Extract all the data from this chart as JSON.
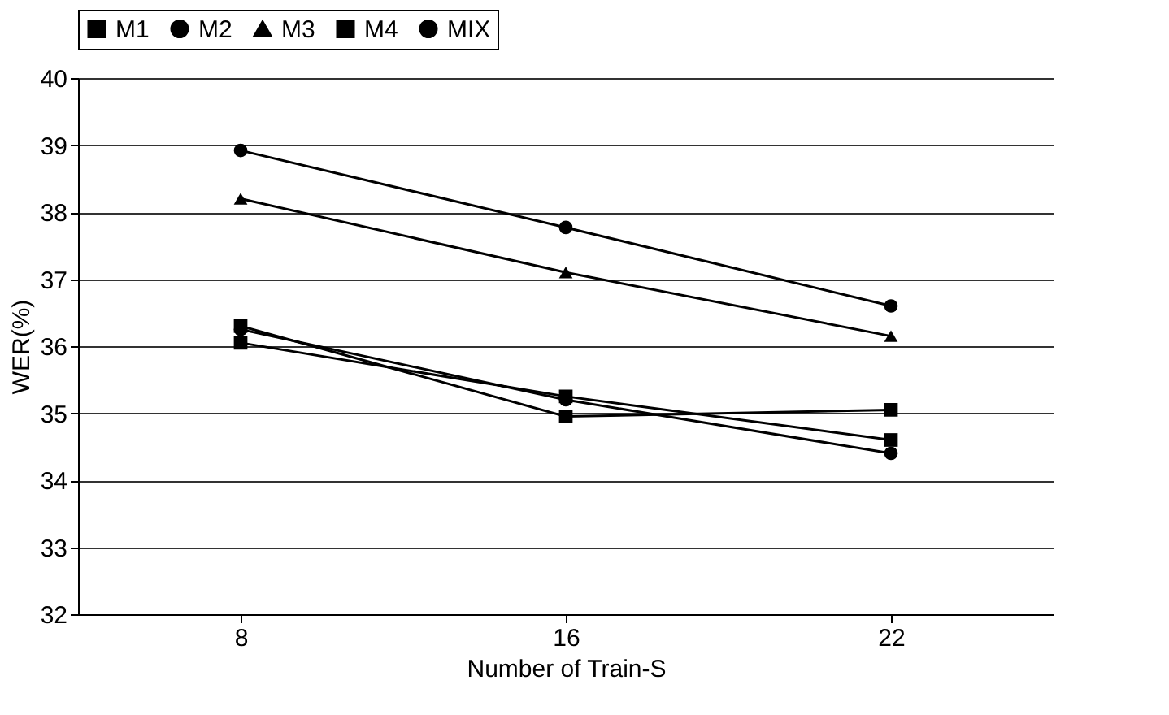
{
  "chart_data": {
    "type": "line",
    "xlabel": "Number of Train-S",
    "ylabel": "WER(%)",
    "categories": [
      "8",
      "16",
      "22"
    ],
    "series": [
      {
        "name": "M1",
        "color": "#000000",
        "marker": "square",
        "values": [
          36.05,
          35.25,
          34.6
        ]
      },
      {
        "name": "M2",
        "color": "#000000",
        "marker": "circle",
        "values": [
          38.92,
          37.77,
          36.6
        ]
      },
      {
        "name": "M3",
        "color": "#000000",
        "marker": "triangle",
        "values": [
          38.2,
          37.1,
          36.15
        ]
      },
      {
        "name": "M4",
        "color": "#000000",
        "marker": "square",
        "values": [
          36.3,
          34.95,
          35.05
        ]
      },
      {
        "name": "MIX",
        "color": "#000000",
        "marker": "circle",
        "values": [
          36.25,
          35.2,
          34.4
        ]
      }
    ],
    "ylim": [
      32,
      40
    ],
    "yticks": [
      32,
      33,
      34,
      35,
      36,
      37,
      38,
      39,
      40
    ],
    "grid": "y",
    "legend": "top"
  }
}
